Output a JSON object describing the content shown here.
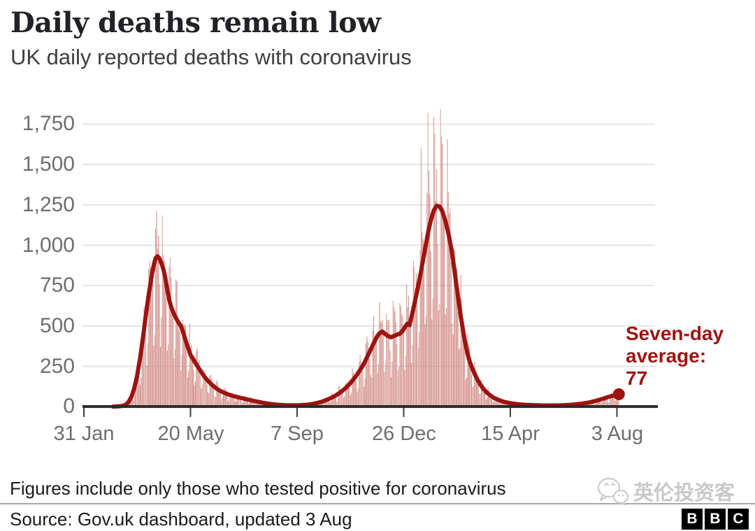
{
  "header": {
    "title": "Daily deaths remain low",
    "subtitle": "UK daily reported deaths with coronavirus"
  },
  "chart_data": {
    "type": "bar+line",
    "title": "Daily deaths remain low",
    "subtitle": "UK daily reported deaths with coronavirus",
    "xlabel": "",
    "ylabel": "",
    "grid": "horizontal-light-gray",
    "x_axis": {
      "start_date": "31 Jan",
      "end_day": 552,
      "tick_days": [
        0,
        110,
        220,
        330,
        440,
        550
      ],
      "tick_labels": [
        "31 Jan",
        "20 May",
        "7 Sep",
        "26 Dec",
        "15 Apr",
        "3 Aug"
      ]
    },
    "y_axis": {
      "min": 0,
      "max": 1750,
      "tick_values": [
        0,
        250,
        500,
        750,
        1000,
        1250,
        1500,
        1750
      ],
      "tick_labels": [
        "0",
        "250",
        "500",
        "750",
        "1,000",
        "1,250",
        "1,500",
        "1,750"
      ]
    },
    "colors": {
      "bar": "#d28c86",
      "line": "#9b1410",
      "annotation": "#9e1310",
      "grid": "#e1e1e1",
      "axis": "#2a2a2a",
      "axis_label": "#6e6e72"
    },
    "series": [
      {
        "name": "Daily reported deaths",
        "type": "bar",
        "color": "#d28c86",
        "start_day": 32,
        "end_day": 552,
        "weekday_multipliers": [
          1.08,
          0.92,
          0.48,
          0.58,
          1.33,
          1.27,
          1.18
        ],
        "jitter": 0.16,
        "outliers": {
          "81": 1185,
          "348": 1600,
          "355": 1820,
          "362": 1690
        },
        "peak_daily_value": 1820
      },
      {
        "name": "Seven-day average",
        "type": "line",
        "color": "#9b1410",
        "keypoints": [
          [
            0,
            0
          ],
          [
            28,
            0
          ],
          [
            32,
            1
          ],
          [
            36,
            2
          ],
          [
            40,
            5
          ],
          [
            43,
            12
          ],
          [
            46,
            28
          ],
          [
            49,
            60
          ],
          [
            52,
            115
          ],
          [
            55,
            195
          ],
          [
            58,
            300
          ],
          [
            61,
            430
          ],
          [
            64,
            570
          ],
          [
            67,
            700
          ],
          [
            70,
            810
          ],
          [
            72,
            875
          ],
          [
            74,
            920
          ],
          [
            76,
            932
          ],
          [
            78,
            918
          ],
          [
            80,
            888
          ],
          [
            82,
            852
          ],
          [
            84,
            798
          ],
          [
            86,
            728
          ],
          [
            88,
            662
          ],
          [
            90,
            618
          ],
          [
            92,
            588
          ],
          [
            94,
            560
          ],
          [
            96,
            538
          ],
          [
            98,
            518
          ],
          [
            100,
            500
          ],
          [
            102,
            468
          ],
          [
            104,
            430
          ],
          [
            106,
            390
          ],
          [
            108,
            355
          ],
          [
            110,
            322
          ],
          [
            113,
            292
          ],
          [
            116,
            262
          ],
          [
            119,
            234
          ],
          [
            122,
            206
          ],
          [
            125,
            181
          ],
          [
            128,
            160
          ],
          [
            131,
            142
          ],
          [
            134,
            126
          ],
          [
            137,
            112
          ],
          [
            140,
            100
          ],
          [
            144,
            88
          ],
          [
            148,
            78
          ],
          [
            152,
            70
          ],
          [
            156,
            63
          ],
          [
            160,
            57
          ],
          [
            165,
            50
          ],
          [
            170,
            43
          ],
          [
            175,
            36
          ],
          [
            180,
            30
          ],
          [
            185,
            24
          ],
          [
            190,
            19
          ],
          [
            195,
            15
          ],
          [
            200,
            12
          ],
          [
            205,
            10
          ],
          [
            210,
            9
          ],
          [
            215,
            9
          ],
          [
            220,
            9
          ],
          [
            225,
            10
          ],
          [
            230,
            12
          ],
          [
            235,
            16
          ],
          [
            240,
            22
          ],
          [
            245,
            30
          ],
          [
            250,
            41
          ],
          [
            255,
            54
          ],
          [
            260,
            70
          ],
          [
            265,
            90
          ],
          [
            270,
            115
          ],
          [
            274,
            140
          ],
          [
            278,
            168
          ],
          [
            282,
            200
          ],
          [
            286,
            237
          ],
          [
            290,
            278
          ],
          [
            294,
            330
          ],
          [
            298,
            380
          ],
          [
            302,
            430
          ],
          [
            305,
            455
          ],
          [
            308,
            465
          ],
          [
            311,
            450
          ],
          [
            314,
            437
          ],
          [
            317,
            430
          ],
          [
            320,
            438
          ],
          [
            323,
            446
          ],
          [
            326,
            452
          ],
          [
            329,
            470
          ],
          [
            332,
            500
          ],
          [
            334,
            515
          ],
          [
            336,
            505
          ],
          [
            338,
            555
          ],
          [
            340,
            610
          ],
          [
            343,
            690
          ],
          [
            346,
            780
          ],
          [
            349,
            875
          ],
          [
            352,
            975
          ],
          [
            355,
            1075
          ],
          [
            358,
            1155
          ],
          [
            361,
            1215
          ],
          [
            364,
            1245
          ],
          [
            367,
            1240
          ],
          [
            370,
            1208
          ],
          [
            373,
            1150
          ],
          [
            376,
            1075
          ],
          [
            379,
            985
          ],
          [
            381,
            905
          ],
          [
            383,
            815
          ],
          [
            385,
            725
          ],
          [
            387,
            640
          ],
          [
            389,
            555
          ],
          [
            391,
            480
          ],
          [
            393,
            410
          ],
          [
            395,
            350
          ],
          [
            397,
            300
          ],
          [
            400,
            248
          ],
          [
            403,
            205
          ],
          [
            406,
            168
          ],
          [
            409,
            138
          ],
          [
            412,
            112
          ],
          [
            415,
            92
          ],
          [
            418,
            76
          ],
          [
            421,
            63
          ],
          [
            424,
            52
          ],
          [
            427,
            44
          ],
          [
            430,
            37
          ],
          [
            433,
            31
          ],
          [
            436,
            27
          ],
          [
            439,
            23
          ],
          [
            442,
            20
          ],
          [
            446,
            17
          ],
          [
            450,
            14
          ],
          [
            454,
            12
          ],
          [
            458,
            11
          ],
          [
            462,
            10
          ],
          [
            467,
            9
          ],
          [
            472,
            8
          ],
          [
            478,
            8
          ],
          [
            484,
            8
          ],
          [
            490,
            8
          ],
          [
            495,
            9
          ],
          [
            500,
            11
          ],
          [
            505,
            13
          ],
          [
            510,
            16
          ],
          [
            515,
            20
          ],
          [
            520,
            25
          ],
          [
            525,
            31
          ],
          [
            530,
            39
          ],
          [
            535,
            48
          ],
          [
            540,
            58
          ],
          [
            544,
            65
          ],
          [
            548,
            71
          ],
          [
            552,
            77
          ]
        ]
      }
    ],
    "annotation": {
      "lines": [
        "Seven-day",
        "average:",
        "77"
      ],
      "value": 77,
      "color": "#9e1310"
    },
    "latest_point": {
      "day": 552,
      "value": 77,
      "x_label": "3 Aug"
    }
  },
  "footer": {
    "note": "Figures include only those who tested positive for coronavirus",
    "source": "Source: Gov.uk dashboard, updated 3 Aug",
    "logo_letters": [
      "B",
      "B",
      "C"
    ]
  },
  "watermark": {
    "text": "英伦投资客",
    "icon": "wechat-icon"
  }
}
